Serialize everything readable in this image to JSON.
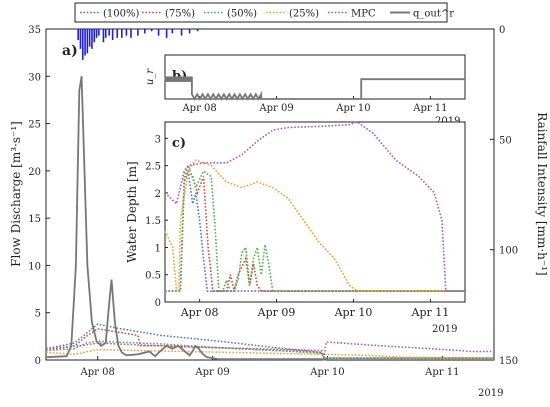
{
  "chart_data": [
    {
      "type": "line",
      "panel_label": "a)",
      "ylabel": "Flow Discharge [m³·s⁻¹]",
      "y2label": "Rainfall Intensity [mm·h⁻¹]",
      "ylim": [
        0,
        35
      ],
      "y2lim": [
        150,
        0
      ],
      "yticks": [
        "0",
        "5",
        "10",
        "15",
        "20",
        "25",
        "30",
        "35"
      ],
      "y2ticks": [
        "150",
        "100",
        "50",
        "0"
      ],
      "xlim": [
        0,
        3.9
      ],
      "xticks": [
        {
          "x": 0.45,
          "label": "Apr 08"
        },
        {
          "x": 1.45,
          "label": "Apr 09"
        },
        {
          "x": 2.45,
          "label": "Apr 10"
        },
        {
          "x": 3.45,
          "label": "Apr 11"
        }
      ],
      "year_label": "2019",
      "legend": {
        "placement": "top",
        "entries": [
          "(100%)",
          "(75%)",
          "(50%)",
          "(25%)",
          "MPC",
          "q_out^r"
        ]
      },
      "series": [
        {
          "name": "(100%)",
          "color": "#4a78c4",
          "style": "dotted",
          "x": [
            0,
            0.25,
            0.35,
            0.45,
            0.6,
            0.8,
            1.0,
            1.5,
            2.0,
            2.4,
            2.42,
            3.9
          ],
          "y": [
            1.2,
            1.8,
            2.8,
            3.8,
            3.4,
            3.0,
            2.6,
            2.0,
            1.3,
            0.8,
            0.2,
            0.2
          ]
        },
        {
          "name": "(75%)",
          "color": "#e0443c",
          "style": "dotted",
          "x": [
            0,
            0.25,
            0.35,
            0.45,
            0.6,
            0.8,
            0.82,
            1.0,
            1.5,
            2.0,
            2.4,
            2.42,
            3.9
          ],
          "y": [
            1.0,
            1.5,
            2.5,
            3.3,
            3.0,
            2.6,
            1.5,
            1.5,
            1.3,
            1.0,
            0.8,
            0.2,
            0.2
          ]
        },
        {
          "name": "(50%)",
          "color": "#4caf50",
          "style": "dotted",
          "x": [
            0,
            0.25,
            0.35,
            0.45,
            0.6,
            0.8,
            1.0,
            1.5,
            2.0,
            2.4,
            2.42,
            3.9
          ],
          "y": [
            1.0,
            1.2,
            1.8,
            2.0,
            1.9,
            1.8,
            1.7,
            1.3,
            1.0,
            0.7,
            0.2,
            0.2
          ]
        },
        {
          "name": "(25%)",
          "color": "#f39c33",
          "style": "dotted",
          "x": [
            0,
            0.25,
            0.45,
            0.8,
            1.2,
            1.6,
            2.0,
            2.4,
            2.8,
            3.1,
            3.9
          ],
          "y": [
            0.8,
            0.6,
            1.1,
            1.0,
            0.9,
            0.8,
            0.7,
            0.6,
            0.5,
            0.3,
            0.2
          ]
        },
        {
          "name": "MPC",
          "color": "#a855c8",
          "style": "dotted",
          "x": [
            0,
            0.3,
            0.45,
            0.8,
            1.0,
            1.2,
            1.8,
            2.4,
            2.42,
            2.44,
            2.8,
            3.2,
            3.6,
            3.7,
            3.9
          ],
          "y": [
            1.2,
            1.5,
            1.8,
            1.6,
            1.5,
            1.4,
            1.2,
            1.0,
            0.3,
            1.9,
            1.6,
            1.3,
            1.0,
            0.9,
            0.9
          ]
        },
        {
          "name": "q_out^r",
          "color": "#777777",
          "style": "solid",
          "x": [
            0,
            0.18,
            0.22,
            0.26,
            0.29,
            0.31,
            0.33,
            0.36,
            0.4,
            0.44,
            0.48,
            0.52,
            0.55,
            0.57,
            0.6,
            0.63,
            0.66,
            0.7,
            0.8,
            0.9,
            0.95,
            1.0,
            1.05,
            1.1,
            1.15,
            1.2,
            1.25,
            1.28,
            1.3,
            1.33,
            1.36,
            1.4,
            1.45,
            1.5,
            1.6,
            2.4,
            2.45,
            3.9
          ],
          "y": [
            0.3,
            0.4,
            1.5,
            10.0,
            28.5,
            30.0,
            22.0,
            10.0,
            4.0,
            2.0,
            1.5,
            1.8,
            6.0,
            8.5,
            4.0,
            1.5,
            0.8,
            0.5,
            0.6,
            0.9,
            0.4,
            1.0,
            1.5,
            1.2,
            1.5,
            1.0,
            0.5,
            1.0,
            1.5,
            1.2,
            0.7,
            0.3,
            0.2,
            0.1,
            0.1,
            0.1,
            0.0,
            0.0
          ]
        },
        {
          "name": "rainfall",
          "color": "#1f1fd8",
          "style": "bars",
          "axis": "y2",
          "x": [
            0.28,
            0.3,
            0.32,
            0.34,
            0.36,
            0.38,
            0.4,
            0.42,
            0.44,
            0.46,
            0.5,
            0.52,
            0.55,
            0.58,
            0.62,
            0.66,
            0.7,
            0.74,
            0.8,
            0.86,
            0.92,
            0.98,
            1.05,
            1.1,
            1.18,
            1.25,
            1.32
          ],
          "y": [
            5,
            9,
            14,
            12,
            11,
            8,
            9,
            6,
            4,
            3,
            6,
            4,
            3,
            5,
            4,
            4,
            3,
            4,
            3,
            2,
            1,
            3,
            4,
            2,
            3,
            2,
            1
          ]
        }
      ]
    },
    {
      "type": "line",
      "panel_label": "b)",
      "ylabel": "u_r",
      "xlim": [
        0,
        3.9
      ],
      "ylim": [
        0,
        1
      ],
      "xticks": [
        {
          "x": 0.45,
          "label": "Apr 08"
        },
        {
          "x": 1.45,
          "label": "Apr 09"
        },
        {
          "x": 2.45,
          "label": "Apr 10"
        },
        {
          "x": 3.45,
          "label": "Apr 11"
        }
      ],
      "year_label": "2019",
      "series": [
        {
          "name": "MPC control",
          "color": "#777777",
          "style": "solid",
          "segments": [
            {
              "x0": 0.0,
              "x1": 0.35,
              "y": 0.45,
              "oscillation": true
            },
            {
              "x0": 0.35,
              "x1": 1.25,
              "y": 0.05,
              "oscillation": true
            },
            {
              "x0": 1.25,
              "x1": 2.55,
              "y": 0.0,
              "oscillation": false
            },
            {
              "x0": 2.55,
              "x1": 3.9,
              "y": 0.45,
              "oscillation": false
            }
          ]
        }
      ]
    },
    {
      "type": "line",
      "panel_label": "c)",
      "ylabel": "Water Depth [m]",
      "ylim": [
        0,
        3.3
      ],
      "yticks": [
        "0",
        "0.5",
        "1",
        "1.5",
        "2",
        "2.5",
        "3"
      ],
      "xlim": [
        0,
        3.9
      ],
      "xticks": [
        {
          "x": 0.45,
          "label": "Apr 08"
        },
        {
          "x": 1.45,
          "label": "Apr 09"
        },
        {
          "x": 2.45,
          "label": "Apr 10"
        },
        {
          "x": 3.45,
          "label": "Apr 11"
        }
      ],
      "year_label": "2019",
      "series": [
        {
          "name": "(100%)",
          "color": "#4a78c4",
          "style": "dotted",
          "x": [
            0,
            0.15,
            0.2,
            0.25,
            0.3,
            0.36,
            0.4,
            0.45,
            0.5,
            0.55,
            0.6,
            3.9
          ],
          "y": [
            0.2,
            0.2,
            0.2,
            2.2,
            2.4,
            1.8,
            2.0,
            1.5,
            0.8,
            0.2,
            0.2,
            0.2
          ]
        },
        {
          "name": "(75%)",
          "color": "#e0443c",
          "style": "dotted",
          "x": [
            0,
            0.2,
            0.25,
            0.3,
            0.36,
            0.42,
            0.5,
            0.56,
            0.6,
            0.62,
            0.8,
            0.85,
            0.9,
            0.95,
            1.05,
            1.1,
            1.15,
            1.2,
            1.25,
            1.3,
            3.9
          ],
          "y": [
            0.2,
            0.2,
            2.2,
            2.4,
            2.3,
            2.0,
            2.3,
            1.0,
            0.5,
            0.2,
            0.2,
            0.5,
            0.2,
            0.5,
            0.8,
            0.3,
            0.7,
            0.3,
            0.2,
            0.2,
            0.2
          ]
        },
        {
          "name": "(50%)",
          "color": "#4caf50",
          "style": "dotted",
          "x": [
            0,
            0.2,
            0.25,
            0.3,
            0.4,
            0.5,
            0.6,
            0.65,
            0.7,
            0.75,
            0.8,
            0.85,
            0.9,
            0.95,
            1.0,
            1.05,
            1.1,
            1.15,
            1.2,
            1.25,
            1.3,
            1.35,
            1.4,
            3.9
          ],
          "y": [
            0.2,
            0.2,
            2.3,
            2.5,
            2.1,
            2.4,
            2.3,
            1.4,
            0.2,
            0.2,
            0.4,
            0.2,
            0.2,
            0.4,
            0.9,
            1.0,
            0.3,
            0.8,
            1.0,
            0.5,
            1.05,
            0.7,
            0.2,
            0.2
          ]
        },
        {
          "name": "(25%)",
          "color": "#f39c33",
          "style": "dotted",
          "x": [
            0,
            0.1,
            0.15,
            0.18,
            0.2,
            0.3,
            0.4,
            0.5,
            0.6,
            0.8,
            1.0,
            1.2,
            1.4,
            1.6,
            1.8,
            2.0,
            2.2,
            2.4,
            2.5,
            2.6,
            3.9
          ],
          "y": [
            1.3,
            1.0,
            0.2,
            0.2,
            1.5,
            2.4,
            2.6,
            2.55,
            2.5,
            2.2,
            2.1,
            2.2,
            2.1,
            1.9,
            1.5,
            1.1,
            0.8,
            0.3,
            0.2,
            0.2,
            0.2
          ]
        },
        {
          "name": "MPC",
          "color": "#a855c8",
          "style": "dotted",
          "x": [
            0,
            0.15,
            0.25,
            0.3,
            0.5,
            0.8,
            1.0,
            1.2,
            1.4,
            1.6,
            2.0,
            2.4,
            2.5,
            2.7,
            3.0,
            3.3,
            3.5,
            3.6,
            3.65,
            3.9
          ],
          "y": [
            2.0,
            1.8,
            2.4,
            2.5,
            2.55,
            2.55,
            2.7,
            2.95,
            3.15,
            3.2,
            3.22,
            3.25,
            3.3,
            3.1,
            2.6,
            2.3,
            2.0,
            1.5,
            0.2,
            0.2
          ]
        }
      ]
    }
  ]
}
